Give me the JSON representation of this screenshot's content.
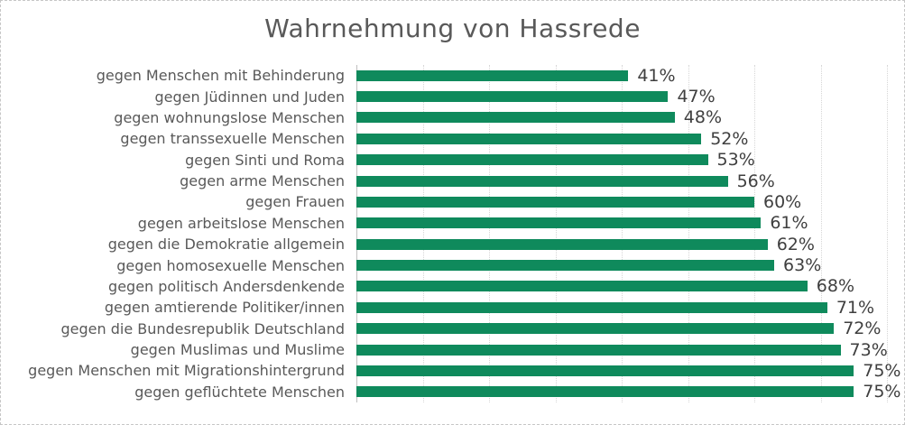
{
  "window": {
    "background": "#ffffff",
    "border_color": "#c6c6c6"
  },
  "chart_data": {
    "type": "bar",
    "orientation": "horizontal",
    "title": "Wahrnehmung von Hassrede",
    "categories": [
      "gegen Menschen mit Behinderung",
      "gegen Jüdinnen und Juden",
      "gegen wohnungslose Menschen",
      "gegen transsexuelle Menschen",
      "gegen Sinti und Roma",
      "gegen arme Menschen",
      "gegen Frauen",
      "gegen arbeitslose Menschen",
      "gegen die Demokratie allgemein",
      "gegen homosexuelle Menschen",
      "gegen politisch Andersdenkende",
      "gegen amtierende Politiker/innen",
      "gegen die Bundesrepublik Deutschland",
      "gegen Muslimas und Muslime",
      "gegen Menschen mit Migrationshintergrund",
      "gegen geflüchtete Menschen"
    ],
    "values": [
      41,
      47,
      48,
      52,
      53,
      56,
      60,
      61,
      62,
      63,
      68,
      71,
      72,
      73,
      75,
      75
    ],
    "value_labels": [
      "41%",
      "47%",
      "48%",
      "52%",
      "53%",
      "56%",
      "60%",
      "61%",
      "62%",
      "63%",
      "68%",
      "71%",
      "72%",
      "73%",
      "75%",
      "75%"
    ],
    "xlabel": "",
    "ylabel": "",
    "xlim": [
      0,
      80
    ],
    "gridline_interval": 10,
    "grid": "vertical-dotted",
    "legend": false,
    "data_labels": "outside-end",
    "colors": {
      "bar": "#0f8a5c",
      "title_text": "#595959",
      "category_text": "#595959",
      "value_text": "#3f3f3f",
      "gridline": "#d6d6d6",
      "axis_line": "#bfbfbf"
    }
  }
}
